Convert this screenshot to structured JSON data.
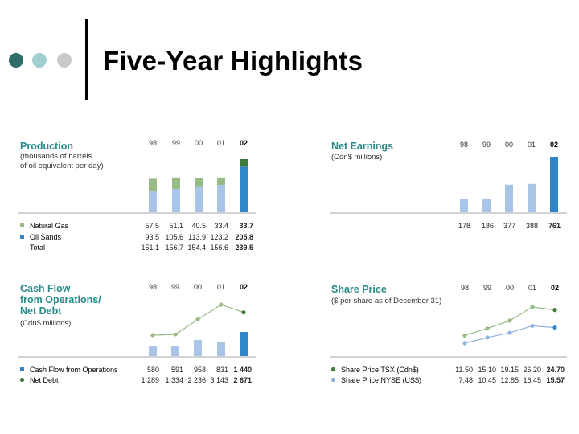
{
  "title": "Five-Year Highlights",
  "chart_data": [
    {
      "type": "bar",
      "title": "Production",
      "subtitle": "(thousands of barrels\nof oil equivalent per day)",
      "categories": [
        "98",
        "99",
        "00",
        "01",
        "02"
      ],
      "stacked": true,
      "series": [
        {
          "name": "Natural Gas",
          "values": [
            57.5,
            51.1,
            40.5,
            33.4,
            33.7
          ],
          "color": "#98bb86",
          "highlight": "#3e7a3e"
        },
        {
          "name": "Oil Sands",
          "values": [
            93.5,
            105.6,
            113.9,
            123.2,
            205.8
          ],
          "color": "#a8c4e6",
          "highlight": "#2f86c8"
        }
      ],
      "total_label": "Total",
      "totals": [
        "151.1",
        "156.7",
        "154.4",
        "156.6",
        "239.5"
      ],
      "value_labels": {
        "Natural Gas": [
          "57.5",
          "51.1",
          "40.5",
          "33.4",
          "33.7"
        ],
        "Oil Sands": [
          "93.5",
          "105.6",
          "113.9",
          "123.2",
          "205.8"
        ]
      },
      "ylim": [
        0,
        260
      ]
    },
    {
      "type": "bar",
      "title": "Net Earnings",
      "subtitle": "(Cdn$ millions)",
      "categories": [
        "98",
        "99",
        "00",
        "01",
        "02"
      ],
      "series": [
        {
          "name": "",
          "values": [
            178,
            186,
            377,
            388,
            761
          ],
          "color": "#a8c4e6",
          "highlight": "#2f86c8"
        }
      ],
      "value_labels": [
        "178",
        "186",
        "377",
        "388",
        "761"
      ],
      "ylim": [
        0,
        800
      ]
    },
    {
      "type": "bar",
      "title": "Cash Flow\nfrom Operations/\nNet Debt",
      "subtitle": "(Cdn$ millions)",
      "categories": [
        "98",
        "99",
        "00",
        "01",
        "02"
      ],
      "series": [
        {
          "name": "Cash Flow from Operations",
          "kind": "bar",
          "values": [
            580,
            591,
            958,
            831,
            1440
          ],
          "color": "#a8c4e6",
          "highlight": "#2f86c8"
        },
        {
          "name": "Net Debt",
          "kind": "line",
          "values": [
            1289,
            1334,
            2236,
            3143,
            2671
          ],
          "color": "#98bb86",
          "highlight": "#3e7a3e"
        }
      ],
      "value_labels": {
        "Cash Flow from Operations": [
          "580",
          "591",
          "958",
          "831",
          "1 440"
        ],
        "Net Debt": [
          "1 289",
          "1 334",
          "2 236",
          "3 143",
          "2 671"
        ]
      },
      "ylim": [
        0,
        3600
      ]
    },
    {
      "type": "line",
      "title": "Share Price",
      "subtitle": "($ per share as of December 31)",
      "categories": [
        "98",
        "99",
        "00",
        "01",
        "02"
      ],
      "series": [
        {
          "name": "Share Price TSX (Cdn$)",
          "values": [
            11.5,
            15.1,
            19.15,
            26.2,
            24.7
          ],
          "color": "#98bb86",
          "highlight": "#3e7a3e"
        },
        {
          "name": "Share Price NYSE (US$)",
          "values": [
            7.48,
            10.45,
            12.85,
            16.45,
            15.57
          ],
          "color": "#8fb3dd",
          "highlight": "#2f86c8"
        }
      ],
      "value_labels": {
        "Share Price TSX (Cdn$)": [
          "11.50",
          "15.10",
          "19.15",
          "26.20",
          "24.70"
        ],
        "Share Price NYSE (US$)": [
          "7.48",
          "10.45",
          "12.85",
          "16.45",
          "15.57"
        ]
      },
      "ylim": [
        0,
        32
      ]
    }
  ]
}
